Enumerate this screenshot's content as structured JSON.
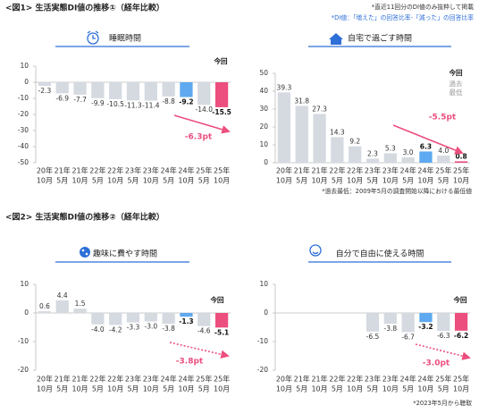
{
  "header": {
    "title": "<図1> 生活実態DI値の推移①（経年比較）",
    "notes": [
      "*直近11回分のDI値のみ抜粋して掲載",
      "*DI値：「増えた」の回答比率-「減った」の回答比率"
    ]
  },
  "section2": {
    "title": "<図2> 生活実態DI値の推移②（経年比較）"
  },
  "chart_data": [
    {
      "type": "bar",
      "title": "睡眠時間",
      "categories": [
        [
          "20年",
          "10月"
        ],
        [
          "21年",
          "5月"
        ],
        [
          "21年",
          "10月"
        ],
        [
          "22年",
          "5月"
        ],
        [
          "22年",
          "10月"
        ],
        [
          "23年",
          "5月"
        ],
        [
          "23年",
          "10月"
        ],
        [
          "24年",
          "5月"
        ],
        [
          "24年",
          "10月"
        ],
        [
          "25年",
          "5月"
        ],
        [
          "25年",
          "10月"
        ]
      ],
      "values": [
        -2.3,
        -6.9,
        -7.7,
        -9.9,
        -10.5,
        -11.3,
        -11.4,
        -8.8,
        -9.2,
        -14.0,
        -15.5
      ],
      "value_labels": [
        "-2.3",
        "-6.9",
        "-7.7",
        "-9.9",
        "-10.5",
        "-11.3",
        "-11.4",
        "-8.8",
        "-9.2",
        "-14.0",
        "-15.5"
      ],
      "color": "#d5dae1",
      "colors": [
        "#d5dae1",
        "#d5dae1",
        "#d5dae1",
        "#d5dae1",
        "#d5dae1",
        "#d5dae1",
        "#d5dae1",
        "#d5dae1",
        "#5ea9ef",
        "#d5dae1",
        "#ec4e7e"
      ],
      "ylim": [
        -50,
        10
      ],
      "yticks": [
        10,
        0,
        -10,
        -20,
        -30,
        -40,
        -50
      ],
      "grid": false,
      "current_label": "今回",
      "change_label": "-6.3pt",
      "change_color": "#ec4e7e",
      "arrow_style": "solid"
    },
    {
      "type": "bar",
      "title": "自宅で過ごす時間",
      "categories": [
        [
          "20年",
          "10月"
        ],
        [
          "21年",
          "5月"
        ],
        [
          "21年",
          "10月"
        ],
        [
          "22年",
          "5月"
        ],
        [
          "22年",
          "10月"
        ],
        [
          "23年",
          "5月"
        ],
        [
          "23年",
          "10月"
        ],
        [
          "24年",
          "5月"
        ],
        [
          "24年",
          "10月"
        ],
        [
          "25年",
          "5月"
        ],
        [
          "25年",
          "10月"
        ]
      ],
      "values": [
        39.3,
        31.8,
        27.3,
        14.3,
        9.2,
        2.3,
        5.3,
        3.0,
        6.3,
        4.0,
        0.8
      ],
      "value_labels": [
        "39.3",
        "31.8",
        "27.3",
        "14.3",
        "9.2",
        "2.3",
        "5.3",
        "3.0",
        "6.3",
        "4.0",
        "0.8"
      ],
      "color": "#d5dae1",
      "colors": [
        "#d5dae1",
        "#d5dae1",
        "#d5dae1",
        "#d5dae1",
        "#d5dae1",
        "#d5dae1",
        "#d5dae1",
        "#d5dae1",
        "#5ea9ef",
        "#d5dae1",
        "#ec4e7e"
      ],
      "ylim": [
        0,
        50
      ],
      "yticks": [
        0,
        10,
        20,
        30,
        40,
        50
      ],
      "grid": false,
      "current_label": "今回",
      "current_sub": [
        "過去",
        "最低"
      ],
      "change_label": "-5.5pt",
      "change_color": "#ec4e7e",
      "arrow_style": "solid",
      "note": "*過去最低：2009年5月の調査開始以降における最低値"
    },
    {
      "type": "bar",
      "title": "趣味に費やす時間",
      "categories": [
        [
          "20年",
          "10月"
        ],
        [
          "21年",
          "5月"
        ],
        [
          "21年",
          "10月"
        ],
        [
          "22年",
          "5月"
        ],
        [
          "22年",
          "10月"
        ],
        [
          "23年",
          "5月"
        ],
        [
          "23年",
          "10月"
        ],
        [
          "24年",
          "5月"
        ],
        [
          "24年",
          "10月"
        ],
        [
          "25年",
          "5月"
        ],
        [
          "25年",
          "10月"
        ]
      ],
      "values": [
        0.6,
        4.4,
        1.5,
        -4.0,
        -4.2,
        -3.3,
        -3.0,
        -3.8,
        -1.3,
        -4.6,
        -5.1
      ],
      "value_labels": [
        "0.6",
        "4.4",
        "1.5",
        "-4.0",
        "-4.2",
        "-3.3",
        "-3.0",
        "-3.8",
        "-1.3",
        "-4.6",
        "-5.1"
      ],
      "color": "#d5dae1",
      "colors": [
        "#d5dae1",
        "#d5dae1",
        "#d5dae1",
        "#d5dae1",
        "#d5dae1",
        "#d5dae1",
        "#d5dae1",
        "#d5dae1",
        "#5ea9ef",
        "#d5dae1",
        "#ec4e7e"
      ],
      "ylim": [
        -20,
        10
      ],
      "yticks": [
        10,
        0,
        -10,
        -20
      ],
      "grid": false,
      "current_label": "今回",
      "change_label": "-3.8pt",
      "change_color": "#ec4e7e",
      "arrow_style": "dotted"
    },
    {
      "type": "bar",
      "title": "自分で自由に使える時間",
      "categories": [
        [
          "20年",
          "10月"
        ],
        [
          "21年",
          "5月"
        ],
        [
          "21年",
          "10月"
        ],
        [
          "22年",
          "5月"
        ],
        [
          "22年",
          "10月"
        ],
        [
          "23年",
          "5月"
        ],
        [
          "23年",
          "10月"
        ],
        [
          "24年",
          "5月"
        ],
        [
          "24年",
          "10月"
        ],
        [
          "25年",
          "5月"
        ],
        [
          "25年",
          "10月"
        ]
      ],
      "values": [
        null,
        null,
        null,
        null,
        null,
        -6.5,
        -3.8,
        -6.7,
        -3.2,
        -6.3,
        -6.2
      ],
      "value_labels": [
        null,
        null,
        null,
        null,
        null,
        "-6.5",
        "-3.8",
        "-6.7",
        "-3.2",
        "-6.3",
        "-6.2"
      ],
      "color": "#d5dae1",
      "colors": [
        "#d5dae1",
        "#d5dae1",
        "#d5dae1",
        "#d5dae1",
        "#d5dae1",
        "#d5dae1",
        "#d5dae1",
        "#d5dae1",
        "#5ea9ef",
        "#d5dae1",
        "#ec4e7e"
      ],
      "ylim": [
        -20,
        10
      ],
      "yticks": [
        10,
        0,
        -10,
        -20
      ],
      "grid": false,
      "current_label": "今回",
      "change_label": "-3.0pt",
      "change_color": "#ec4e7e",
      "arrow_style": "dotted",
      "note": "*2023年5月から聴取"
    }
  ]
}
